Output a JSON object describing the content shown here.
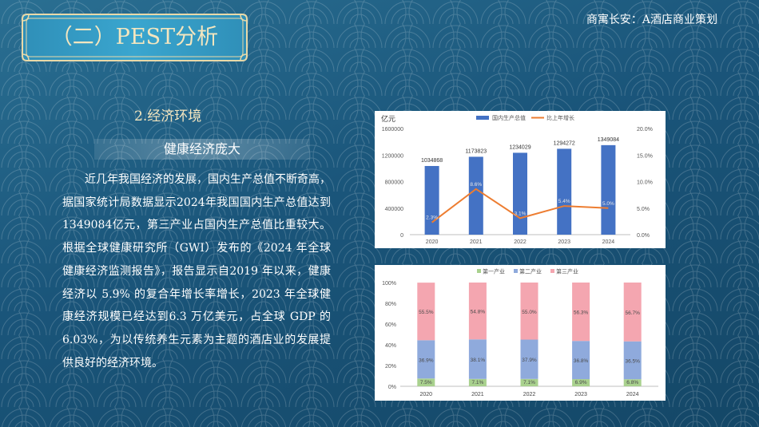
{
  "header": {
    "title": "（二）PEST分析",
    "subtitle_right": "商寓长安：A酒店商业策划"
  },
  "section": {
    "heading": "2.经济环境",
    "subheading": "健康经济庞大",
    "body": "近几年我国经济的发展，国内生产总值不断奇高，据国家统计局数据显示2024年我国国内生产总值达到1349084亿元，第三产业占国内生产总值比重较大。根据全球健康研究所（GWI）发布的《2024 年全球健康经济监测报告》，报告显示自2019 年以来，健康经济以 5.9% 的复合年增长率增长，2023 年全球健康经济规模已经达到6.3 万亿美元，占全球 GDP 的 6.03%，为以传统养生元素为主题的酒店业的发展提供良好的经济环境。"
  },
  "colors": {
    "bar": "#4472c4",
    "line": "#ed7d31",
    "primary": "#a9d18e",
    "secondary": "#8faadc",
    "tertiary": "#f4a6b0",
    "accent_text": "#f4e6bf"
  },
  "chart_data": [
    {
      "type": "bar",
      "y_unit": "亿元",
      "categories": [
        "2020",
        "2021",
        "2022",
        "2023",
        "2024"
      ],
      "series": [
        {
          "name": "国内生产总值",
          "values": [
            1034868,
            1173823,
            1234029,
            1294272,
            1349084
          ],
          "axis": "left"
        },
        {
          "name": "比上年增长",
          "values": [
            2.3,
            8.6,
            3.1,
            5.4,
            5.0
          ],
          "value_labels": [
            "2.3%",
            "8.6%",
            "3.1%",
            "5.4%",
            "5.0%"
          ],
          "axis": "right",
          "kind": "line"
        }
      ],
      "left_ticks": [
        "0",
        "400000",
        "800000",
        "1200000",
        "1600000"
      ],
      "left_ylim": [
        0,
        1600000
      ],
      "right_ticks": [
        "0.0%",
        "5.0%",
        "10.0%",
        "15.0%",
        "20.0%"
      ],
      "right_ylim": [
        0,
        20
      ],
      "legend": "top-center"
    },
    {
      "type": "bar",
      "stacked": true,
      "categories": [
        "2020",
        "2021",
        "2022",
        "2023",
        "2024"
      ],
      "series": [
        {
          "name": "第一产业",
          "values": [
            7.5,
            7.1,
            7.1,
            6.9,
            6.8
          ],
          "labels": [
            "7.5%",
            "7.1%",
            "7.1%",
            "6.9%",
            "6.8%"
          ]
        },
        {
          "name": "第二产业",
          "values": [
            36.9,
            38.1,
            37.9,
            36.8,
            36.5
          ],
          "labels": [
            "36.9%",
            "38.1%",
            "37.9%",
            "36.8%",
            "36.5%"
          ]
        },
        {
          "name": "第三产业",
          "values": [
            55.5,
            54.8,
            55.0,
            56.3,
            56.7
          ],
          "labels": [
            "55.5%",
            "54.8%",
            "55.0%",
            "56.3%",
            "56.7%"
          ]
        }
      ],
      "y_ticks": [
        "0%",
        "20%",
        "40%",
        "60%",
        "80%",
        "100%"
      ],
      "ylim": [
        0,
        100
      ],
      "legend": "top-left"
    }
  ]
}
